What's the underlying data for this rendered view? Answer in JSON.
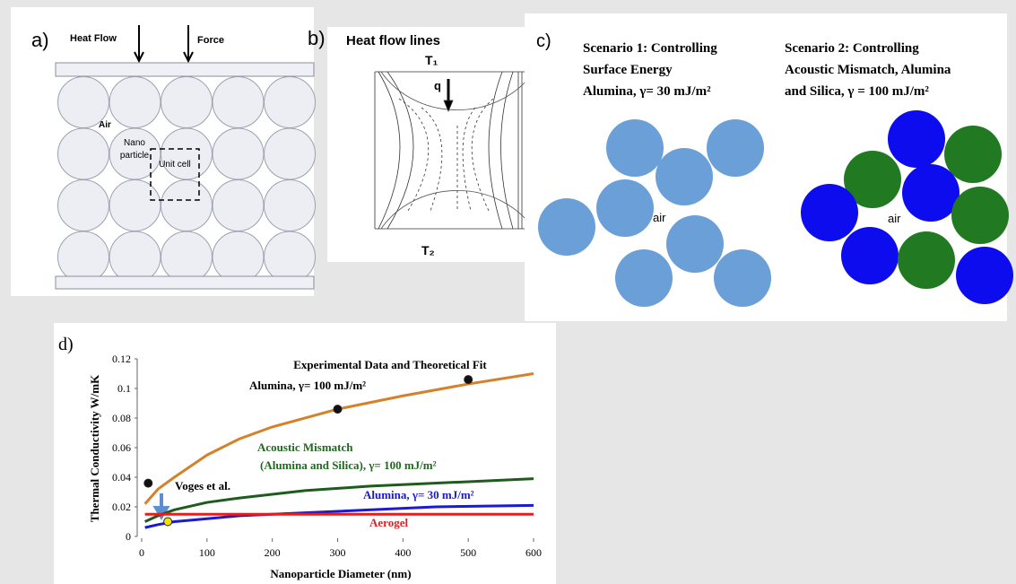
{
  "panels": {
    "a": {
      "label": "a)",
      "heat_flow": "Heat Flow",
      "force": "Force",
      "air": "Air",
      "nano": "Nano",
      "particle": "particle",
      "unit_cell": "Unit cell"
    },
    "b": {
      "label": "b)",
      "title": "Heat flow lines",
      "t1": "T₁",
      "q": "q",
      "t2": "T₂"
    },
    "c": {
      "label": "c)",
      "scenario1": [
        "Scenario 1: Controlling",
        "Surface Energy",
        "Alumina, γ= 30 mJ/m²"
      ],
      "scenario2": [
        "Scenario 2: Controlling",
        "Acoustic Mismatch, Alumina",
        "and Silica,  γ = 100 mJ/m²"
      ],
      "air1": "air",
      "air2": "air"
    }
  },
  "chart_data": {
    "type": "line",
    "panel_label": "d)",
    "x_label": "Nanoparticle Diameter (nm)",
    "y_label": "Thermal Conductivity W/mK",
    "xlim": [
      0,
      600
    ],
    "xticks": [
      0,
      100,
      200,
      300,
      400,
      500,
      600
    ],
    "ylim": [
      0,
      0.12
    ],
    "yticks": [
      0,
      0.02,
      0.04,
      0.06,
      0.08,
      0.1,
      0.12
    ],
    "series": [
      {
        "color": "#d4812a",
        "x": [
          5,
          25,
          50,
          100,
          150,
          200,
          300,
          400,
          500,
          600
        ],
        "values": [
          0.022,
          0.032,
          0.04,
          0.055,
          0.066,
          0.074,
          0.086,
          0.095,
          0.103,
          0.11
        ]
      },
      {
        "color": "#1e5c1e",
        "x": [
          5,
          25,
          50,
          100,
          150,
          250,
          350,
          500,
          600
        ],
        "values": [
          0.01,
          0.014,
          0.018,
          0.023,
          0.026,
          0.031,
          0.034,
          0.037,
          0.039
        ]
      },
      {
        "color": "#1a1ad0",
        "x": [
          5,
          25,
          50,
          100,
          150,
          300,
          450,
          600
        ],
        "values": [
          0.006,
          0.008,
          0.01,
          0.012,
          0.014,
          0.017,
          0.02,
          0.021
        ]
      },
      {
        "color": "#e02020",
        "x": [
          5,
          600
        ],
        "values": [
          0.015,
          0.015
        ]
      },
      {
        "type": "scatter",
        "color": "#111111",
        "x": [
          10,
          300,
          500
        ],
        "values": [
          0.036,
          0.086,
          0.106
        ]
      },
      {
        "type": "scatter",
        "color": "#f2e200",
        "x": [
          40
        ],
        "values": [
          0.01
        ]
      }
    ],
    "annotations": [
      "Experimental Data and Theoretical Fit",
      "Alumina, γ= 100 mJ/m²",
      "Acoustic Mismatch",
      "(Alumina and Silica), γ= 100 mJ/m²",
      "Alumina, γ= 30 mJ/m²",
      "Aerogel",
      "Voges et al."
    ]
  }
}
